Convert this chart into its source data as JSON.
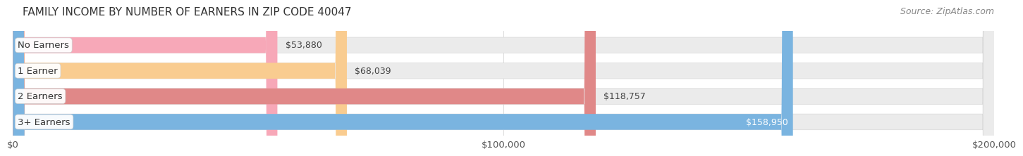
{
  "title": "FAMILY INCOME BY NUMBER OF EARNERS IN ZIP CODE 40047",
  "source": "Source: ZipAtlas.com",
  "categories": [
    "No Earners",
    "1 Earner",
    "2 Earners",
    "3+ Earners"
  ],
  "values": [
    53880,
    68039,
    118757,
    158950
  ],
  "bar_colors": [
    "#f7a8b8",
    "#f9cc90",
    "#e08888",
    "#7ab4e0"
  ],
  "value_labels": [
    "$53,880",
    "$68,039",
    "$118,757",
    "$158,950"
  ],
  "xlim": [
    0,
    200000
  ],
  "xticks": [
    0,
    100000,
    200000
  ],
  "xtick_labels": [
    "$0",
    "$100,000",
    "$200,000"
  ],
  "background_color": "#ffffff",
  "bar_bg_color": "#ebebeb",
  "title_fontsize": 11,
  "source_fontsize": 9,
  "label_fontsize": 9.5,
  "value_fontsize": 9,
  "last_bar_label_color": "white",
  "other_bar_label_color": "#444444"
}
